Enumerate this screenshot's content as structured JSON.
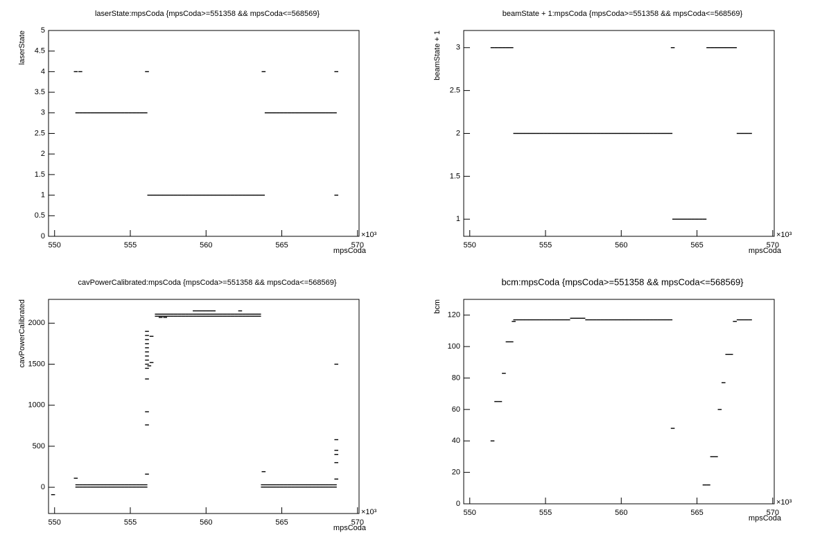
{
  "chart_data": [
    {
      "type": "scatter",
      "title": "laserState:mpsCoda {mpsCoda>=551358 && mpsCoda<=568569}",
      "xlabel": "mpsCoda",
      "ylabel": "laserState",
      "x_exponent": "×10³",
      "color": "#000000",
      "xlim": [
        549.6,
        570.1
      ],
      "ylim": [
        0,
        5
      ],
      "xticks": [
        550,
        555,
        560,
        565,
        570
      ],
      "yticks": [
        0,
        0.5,
        1,
        1.5,
        2,
        2.5,
        3,
        3.5,
        4,
        4.5,
        5
      ],
      "x": [
        551.5,
        551.75,
        552,
        552.25,
        552.5,
        552.75,
        553,
        553.25,
        553.5,
        553.75,
        554,
        554.25,
        554.5,
        554.75,
        555,
        555.25,
        555.5,
        555.75,
        556,
        556.25,
        556.5,
        556.75,
        557,
        557.25,
        557.5,
        557.75,
        558,
        558.25,
        558.5,
        558.75,
        559,
        559.25,
        559.5,
        559.75,
        560,
        560.25,
        560.5,
        560.75,
        561,
        561.25,
        561.5,
        561.75,
        562,
        562.25,
        562.5,
        562.75,
        563,
        563.25,
        563.5,
        563.75,
        564,
        564.25,
        564.5,
        564.75,
        565,
        565.25,
        565.5,
        565.75,
        566,
        566.25,
        566.5,
        566.75,
        567,
        567.25,
        567.5,
        567.75,
        568,
        568.25,
        568.5,
        551.4,
        551.7,
        556.1,
        563.8,
        568.6,
        568.6
      ],
      "values": [
        3,
        3,
        3,
        3,
        3,
        3,
        3,
        3,
        3,
        3,
        3,
        3,
        3,
        3,
        3,
        3,
        3,
        3,
        3,
        1,
        1,
        1,
        1,
        1,
        1,
        1,
        1,
        1,
        1,
        1,
        1,
        1,
        1,
        1,
        1,
        1,
        1,
        1,
        1,
        1,
        1,
        1,
        1,
        1,
        1,
        1,
        1,
        1,
        1,
        1,
        3,
        3,
        3,
        3,
        3,
        3,
        3,
        3,
        3,
        3,
        3,
        3,
        3,
        3,
        3,
        3,
        3,
        3,
        3,
        4,
        4,
        4,
        4,
        4,
        1
      ]
    },
    {
      "type": "scatter",
      "title": "beamState + 1:mpsCoda {mpsCoda>=551358 && mpsCoda<=568569}",
      "xlabel": "mpsCoda",
      "ylabel": "beamState + 1",
      "x_exponent": "×10³",
      "color": "#000000",
      "xlim": [
        549.6,
        570.1
      ],
      "ylim": [
        0.8,
        3.2
      ],
      "xticks": [
        550,
        555,
        560,
        565,
        570
      ],
      "yticks": [
        1,
        1.5,
        2,
        2.5,
        3
      ],
      "x": [
        551.5,
        551.75,
        552,
        552.25,
        552.5,
        552.75,
        553,
        553.25,
        553.5,
        553.75,
        554,
        554.25,
        554.5,
        554.75,
        555,
        555.25,
        555.5,
        555.75,
        556,
        556.25,
        556.5,
        556.75,
        557,
        557.25,
        557.5,
        557.75,
        558,
        558.25,
        558.5,
        558.75,
        559,
        559.25,
        559.5,
        559.75,
        560,
        560.25,
        560.5,
        560.75,
        561,
        561.25,
        561.5,
        561.75,
        562,
        562.25,
        562.5,
        562.75,
        563,
        563.25,
        563.5,
        563.75,
        564,
        564.25,
        564.5,
        564.75,
        565,
        565.25,
        565.5,
        565.75,
        566,
        566.25,
        566.5,
        566.75,
        567,
        567.25,
        567.5,
        567.75,
        568,
        568.25,
        568.5,
        563.4
      ],
      "values": [
        3,
        3,
        3,
        3,
        3,
        3,
        2,
        2,
        2,
        2,
        2,
        2,
        2,
        2,
        2,
        2,
        2,
        2,
        2,
        2,
        2,
        2,
        2,
        2,
        2,
        2,
        2,
        2,
        2,
        2,
        2,
        2,
        2,
        2,
        2,
        2,
        2,
        2,
        2,
        2,
        2,
        2,
        2,
        2,
        2,
        2,
        2,
        2,
        1,
        1,
        1,
        1,
        1,
        1,
        1,
        1,
        1,
        3,
        3,
        3,
        3,
        3,
        3,
        3,
        3,
        2,
        2,
        2,
        2,
        3
      ]
    },
    {
      "type": "scatter",
      "title": "cavPowerCalibrated:mpsCoda {mpsCoda>=551358 && mpsCoda<=568569}",
      "xlabel": "mpsCoda",
      "ylabel": "cavPowerCalibrated",
      "x_exponent": "×10³",
      "color": "#000000",
      "xlim": [
        549.6,
        570.1
      ],
      "ylim": [
        -320,
        2290
      ],
      "xticks": [
        550,
        555,
        560,
        565,
        570
      ],
      "yticks": [
        0,
        500,
        1000,
        1500,
        2000
      ],
      "x": [
        551.5,
        551.75,
        552,
        552.25,
        552.5,
        552.75,
        553,
        553.25,
        553.5,
        553.75,
        554,
        554.25,
        554.5,
        554.75,
        555,
        555.25,
        555.5,
        555.75,
        556,
        551.5,
        551.75,
        552,
        552.25,
        552.5,
        552.75,
        553,
        553.25,
        553.5,
        553.75,
        554,
        554.25,
        554.5,
        554.75,
        555,
        555.25,
        555.5,
        555.75,
        556,
        556.1,
        556.1,
        556.1,
        556.1,
        556.1,
        556.1,
        556.1,
        556.1,
        556.1,
        556.1,
        556.1,
        556.1,
        556.1,
        556.1,
        556.25,
        556.4,
        556.4,
        556.75,
        557,
        557.25,
        557.5,
        557.75,
        558,
        558.25,
        558.5,
        558.75,
        559,
        559.25,
        559.5,
        559.75,
        560,
        560.25,
        560.5,
        560.75,
        561,
        561.25,
        561.5,
        561.75,
        562,
        562.25,
        562.5,
        562.75,
        563,
        563.25,
        563.5,
        556.75,
        557,
        557.25,
        557.5,
        557.75,
        558,
        558.25,
        558.5,
        558.75,
        559,
        559.25,
        559.5,
        559.75,
        560,
        560.25,
        560.5,
        560.75,
        561,
        561.25,
        561.5,
        561.75,
        562,
        562.25,
        562.5,
        562.75,
        563,
        563.25,
        563.5,
        557,
        557.3,
        559.25,
        559.5,
        559.75,
        560,
        560.25,
        560.5,
        562.25,
        563.75,
        564,
        564.25,
        564.5,
        564.75,
        565,
        565.25,
        565.5,
        565.75,
        566,
        566.25,
        566.5,
        566.75,
        567,
        567.25,
        567.5,
        567.75,
        568,
        568.25,
        568.5,
        563.75,
        564,
        564.25,
        564.5,
        564.75,
        565,
        565.25,
        565.5,
        565.75,
        566,
        566.25,
        566.5,
        566.75,
        567,
        567.25,
        567.5,
        567.75,
        568,
        568.25,
        568.5,
        568.6,
        568.6,
        568.6,
        568.6,
        568.6,
        568.6,
        563.8,
        551.4,
        549.9
      ],
      "values": [
        30,
        30,
        30,
        30,
        30,
        30,
        30,
        30,
        30,
        30,
        30,
        30,
        30,
        30,
        30,
        30,
        30,
        30,
        30,
        2,
        2,
        2,
        2,
        2,
        2,
        2,
        2,
        2,
        2,
        2,
        2,
        2,
        2,
        2,
        2,
        2,
        2,
        2,
        1320,
        1450,
        1500,
        1550,
        1600,
        1650,
        1700,
        1750,
        1800,
        1850,
        1900,
        920,
        760,
        160,
        1480,
        1520,
        1840,
        2110,
        2110,
        2110,
        2110,
        2110,
        2110,
        2110,
        2110,
        2110,
        2110,
        2110,
        2110,
        2110,
        2110,
        2110,
        2110,
        2110,
        2110,
        2110,
        2110,
        2110,
        2110,
        2110,
        2110,
        2110,
        2110,
        2110,
        2110,
        2085,
        2085,
        2085,
        2085,
        2085,
        2085,
        2085,
        2085,
        2085,
        2085,
        2085,
        2085,
        2085,
        2085,
        2085,
        2085,
        2085,
        2085,
        2085,
        2085,
        2085,
        2085,
        2085,
        2085,
        2085,
        2085,
        2085,
        2085,
        2070,
        2070,
        2150,
        2150,
        2150,
        2150,
        2150,
        2150,
        2150,
        30,
        30,
        30,
        30,
        30,
        30,
        30,
        30,
        30,
        30,
        30,
        30,
        30,
        30,
        30,
        30,
        30,
        30,
        30,
        30,
        2,
        2,
        2,
        2,
        2,
        2,
        2,
        2,
        2,
        2,
        2,
        2,
        2,
        2,
        2,
        2,
        2,
        2,
        2,
        2,
        1500,
        580,
        450,
        400,
        300,
        100,
        190,
        110,
        -90
      ]
    },
    {
      "type": "scatter",
      "title": "bcm:mpsCoda {mpsCoda>=551358 && mpsCoda<=568569}",
      "xlabel": "mpsCoda",
      "ylabel": "bcm",
      "x_exponent": "×10³",
      "color": "#000000",
      "xlim": [
        549.6,
        570.1
      ],
      "ylim": [
        0,
        130
      ],
      "xticks": [
        550,
        555,
        560,
        565,
        570
      ],
      "yticks": [
        0,
        20,
        40,
        60,
        80,
        100,
        120
      ],
      "x": [
        551.5,
        551.75,
        552,
        552.25,
        552.5,
        552.75,
        552.9,
        553,
        553.25,
        553.5,
        553.75,
        554,
        554.25,
        554.5,
        554.75,
        555,
        555.25,
        555.5,
        555.75,
        556,
        556.25,
        556.5,
        556.75,
        557,
        557.25,
        557.5,
        557.75,
        558,
        558.25,
        558.5,
        558.75,
        559,
        559.25,
        559.5,
        559.75,
        560,
        560.25,
        560.5,
        560.75,
        561,
        561.25,
        561.5,
        561.75,
        562,
        562.25,
        562.5,
        562.75,
        563,
        563.25,
        563.4,
        565.5,
        565.75,
        566,
        566.25,
        566.5,
        566.75,
        567,
        567.25,
        567.5,
        567.75,
        568,
        568.25,
        568.5
      ],
      "values": [
        40,
        65,
        65,
        83,
        103,
        103,
        116,
        117,
        117,
        117,
        117,
        117,
        117,
        117,
        117,
        117,
        117,
        117,
        117,
        117,
        117,
        117,
        118,
        118,
        118,
        118,
        117,
        117,
        117,
        117,
        117,
        117,
        117,
        117,
        117,
        117,
        117,
        117,
        117,
        117,
        117,
        117,
        117,
        117,
        117,
        117,
        117,
        117,
        117,
        48,
        12,
        12,
        30,
        30,
        60,
        77,
        95,
        95,
        116,
        117,
        117,
        117,
        117
      ]
    }
  ]
}
